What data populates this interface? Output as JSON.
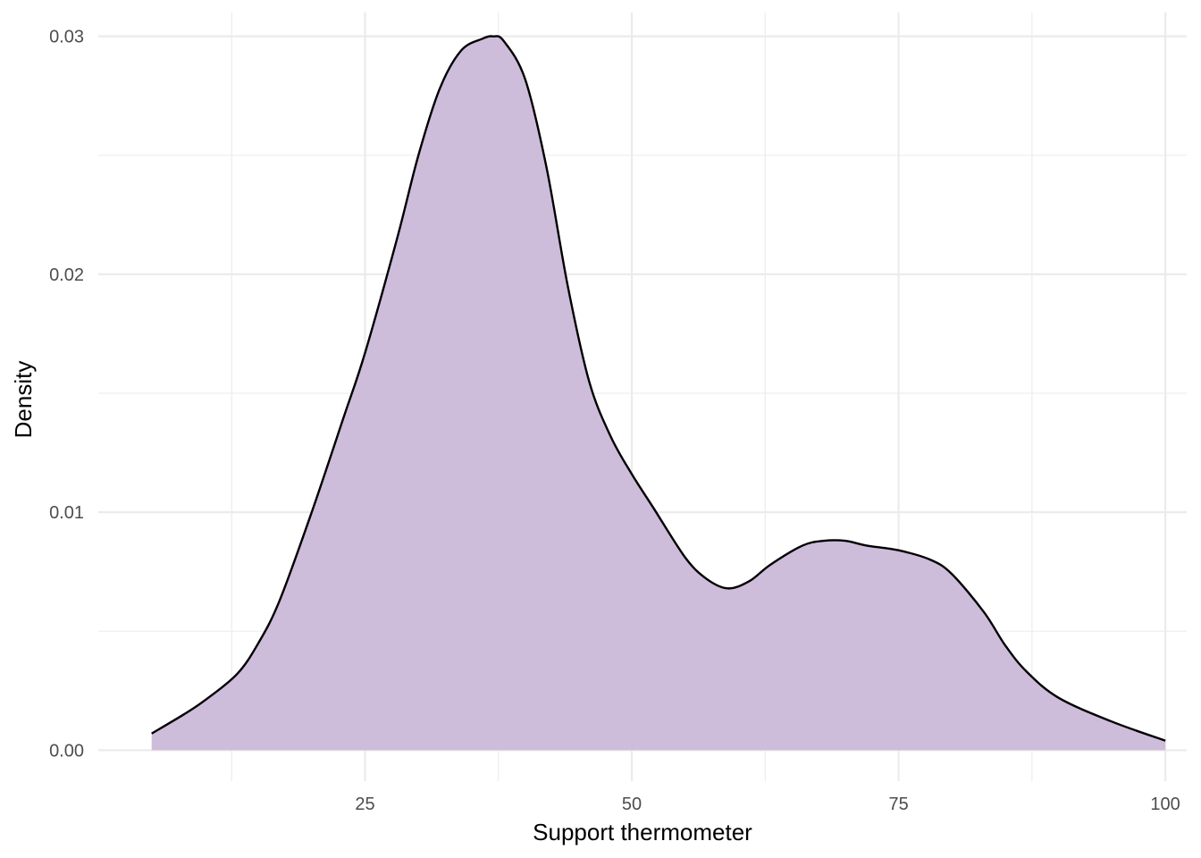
{
  "chart_data": {
    "type": "area",
    "subtype": "density",
    "title": "",
    "xlabel": "Support thermometer",
    "ylabel": "Density",
    "xlim": [
      0,
      102
    ],
    "ylim": [
      -0.0013,
      0.031
    ],
    "x_major_ticks": [
      25,
      50,
      75,
      100
    ],
    "x_minor_ticks": [
      12.5,
      37.5,
      62.5,
      87.5
    ],
    "y_major_ticks": [
      0.0,
      0.01,
      0.02,
      0.03
    ],
    "y_minor_ticks": [
      0.005,
      0.015,
      0.025
    ],
    "x_tick_labels": [
      "25",
      "50",
      "75",
      "100"
    ],
    "y_tick_labels": [
      "0.00",
      "0.01",
      "0.02",
      "0.03"
    ],
    "grid": true,
    "legend": "none",
    "fill_color": "#cbb8d9",
    "line_color": "#000000",
    "x": [
      5,
      8,
      10,
      13,
      15,
      17,
      20,
      23,
      25,
      28,
      30,
      32,
      34,
      36,
      37,
      38,
      40,
      42,
      44,
      46,
      48,
      50,
      52,
      55,
      57,
      59,
      61,
      63,
      66,
      68,
      70,
      72,
      75,
      78,
      80,
      83,
      85,
      87,
      90,
      95,
      100
    ],
    "y": [
      0.0007,
      0.0015,
      0.0021,
      0.0032,
      0.0045,
      0.0063,
      0.01,
      0.014,
      0.0167,
      0.0215,
      0.025,
      0.0278,
      0.0294,
      0.0299,
      0.03,
      0.0298,
      0.0282,
      0.0245,
      0.0195,
      0.0155,
      0.0132,
      0.0116,
      0.0102,
      0.0081,
      0.0072,
      0.0068,
      0.0071,
      0.0078,
      0.0086,
      0.0088,
      0.0088,
      0.0086,
      0.0084,
      0.008,
      0.0074,
      0.0058,
      0.0044,
      0.0033,
      0.0022,
      0.0012,
      0.0004
    ]
  }
}
